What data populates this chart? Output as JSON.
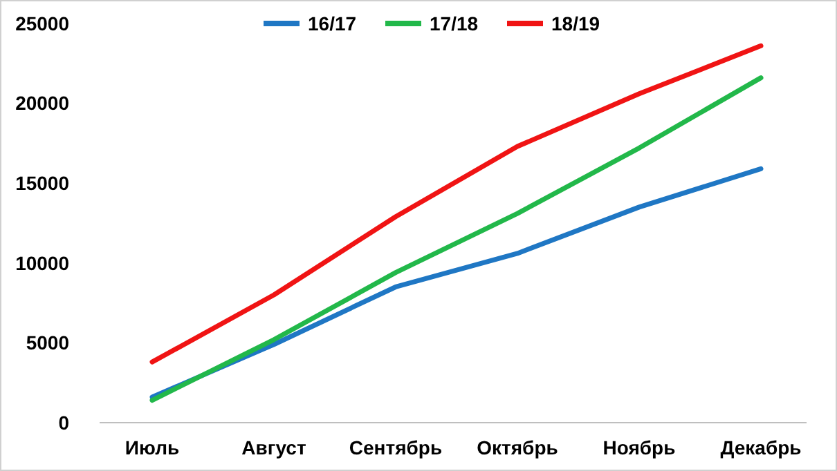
{
  "chart_data": {
    "type": "line",
    "categories": [
      "Июль",
      "Август",
      "Сентябрь",
      "Октябрь",
      "Ноябрь",
      "Декабрь"
    ],
    "series": [
      {
        "name": "16/17",
        "color": "#1f77c4",
        "values": [
          1600,
          4900,
          8500,
          10600,
          13500,
          15900
        ]
      },
      {
        "name": "17/18",
        "color": "#22b84a",
        "values": [
          1400,
          5200,
          9400,
          13100,
          17200,
          21600
        ]
      },
      {
        "name": "18/19",
        "color": "#f01414",
        "values": [
          3800,
          8000,
          12900,
          17300,
          20600,
          23600
        ]
      }
    ],
    "ylim": [
      0,
      25000
    ],
    "yticks": [
      0,
      5000,
      10000,
      15000,
      20000,
      25000
    ],
    "grid": false,
    "legend": "top",
    "marker": "none",
    "line_style": "solid"
  }
}
